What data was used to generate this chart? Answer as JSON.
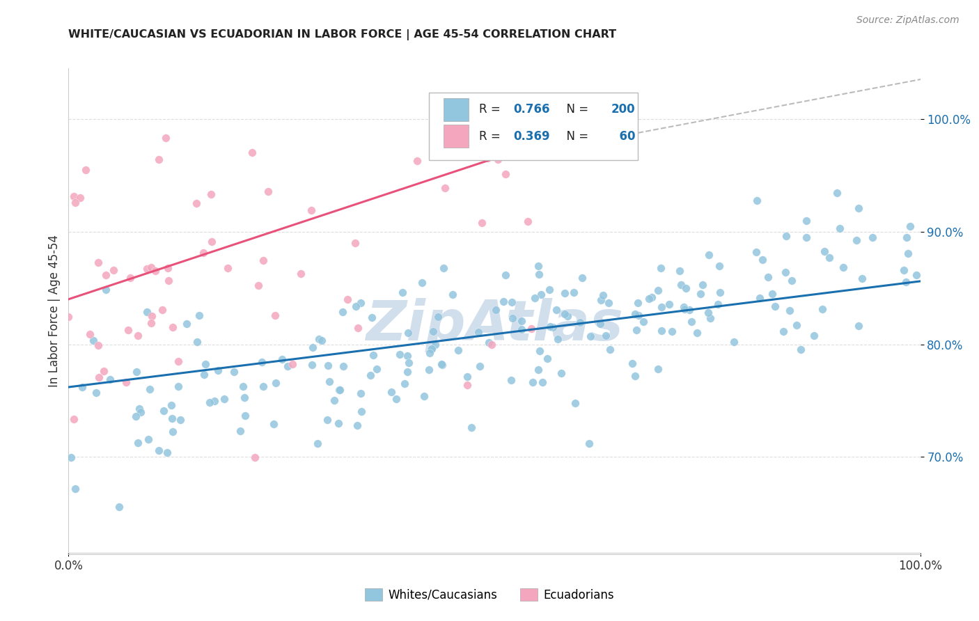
{
  "title": "WHITE/CAUCASIAN VS ECUADORIAN IN LABOR FORCE | AGE 45-54 CORRELATION CHART",
  "source": "Source: ZipAtlas.com",
  "ylabel": "In Labor Force | Age 45-54",
  "y_ticks": [
    0.7,
    0.8,
    0.9,
    1.0
  ],
  "y_tick_labels": [
    "70.0%",
    "80.0%",
    "90.0%",
    "100.0%"
  ],
  "x_range": [
    0.0,
    1.0
  ],
  "y_range": [
    0.615,
    1.045
  ],
  "legend_label1": "Whites/Caucasians",
  "legend_label2": "Ecuadorians",
  "blue_scatter_color": "#92c5de",
  "pink_scatter_color": "#f4a6be",
  "blue_line_color": "#1a6faf",
  "pink_line_color": "#e8517a",
  "dashed_line_color": "#bbbbbb",
  "watermark_color": "#ccdcec",
  "blue_R": 0.766,
  "pink_R": 0.369,
  "blue_N": 200,
  "pink_N": 60,
  "blue_line_x": [
    0.0,
    1.0
  ],
  "blue_line_y": [
    0.762,
    0.856
  ],
  "pink_line_x": [
    0.0,
    0.6
  ],
  "pink_line_y": [
    0.84,
    0.99
  ],
  "dash_line_x": [
    0.58,
    1.02
  ],
  "dash_line_y": [
    0.975,
    1.038
  ],
  "title_color": "#222222",
  "source_color": "#888888",
  "axis_color": "#2166ac",
  "tick_text_color": "#1a6faf",
  "grid_color": "#dddddd",
  "spine_color": "#cccccc"
}
